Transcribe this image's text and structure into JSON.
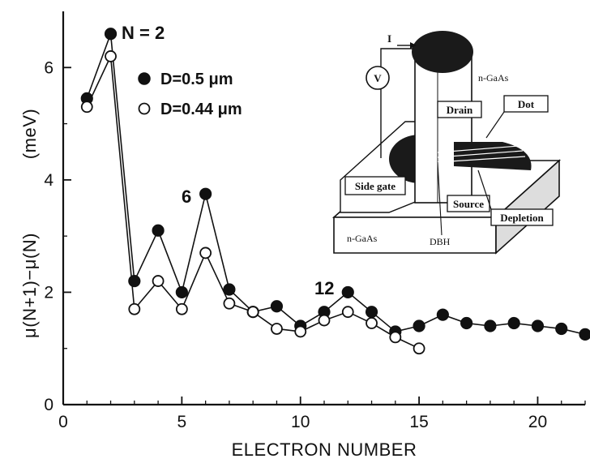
{
  "chart_data": {
    "type": "line",
    "title": "",
    "xlabel": "ELECTRON NUMBER",
    "ylabel_main": "μ(N+1)−μ(N)",
    "ylabel_unit": "(meV)",
    "xlim": [
      0,
      22
    ],
    "ylim": [
      0,
      7
    ],
    "x_ticks": [
      0,
      5,
      10,
      15,
      20
    ],
    "y_ticks": [
      0,
      2,
      4,
      6
    ],
    "grid": false,
    "legend_position": "upper-left",
    "series": [
      {
        "name": "D=0.5 μm",
        "marker": "filled-circle",
        "x": [
          1,
          2,
          3,
          4,
          5,
          6,
          7,
          8,
          9,
          10,
          11,
          12,
          13,
          14,
          15,
          16,
          17,
          18,
          19,
          20,
          21,
          22
        ],
        "values": [
          5.45,
          6.6,
          2.2,
          3.1,
          2.0,
          3.75,
          2.05,
          1.65,
          1.75,
          1.4,
          1.65,
          2.0,
          1.65,
          1.3,
          1.4,
          1.6,
          1.45,
          1.4,
          1.45,
          1.4,
          1.35,
          1.25
        ]
      },
      {
        "name": "D=0.44 μm",
        "marker": "open-circle",
        "x": [
          1,
          2,
          3,
          4,
          5,
          6,
          7,
          8,
          9,
          10,
          11,
          12,
          13,
          14,
          15
        ],
        "values": [
          5.3,
          6.2,
          1.7,
          2.2,
          1.7,
          2.7,
          1.8,
          1.65,
          1.35,
          1.3,
          1.5,
          1.65,
          1.45,
          1.2,
          1.0
        ]
      }
    ],
    "annotations": [
      {
        "text": "N = 2",
        "x": 2,
        "y": 6.6
      },
      {
        "text": "6",
        "x": 6,
        "y": 3.75
      },
      {
        "text": "12",
        "x": 12,
        "y": 2.0
      }
    ],
    "inset": {
      "labels": {
        "current": "I",
        "voltmeter": "V",
        "top_contact": "n-GaAs",
        "drain": "Drain",
        "dot": "Dot",
        "side_gate": "Side gate",
        "source": "Source",
        "depletion": "Depletion",
        "bottom_contact": "n-GaAs",
        "barrier": "DBH"
      }
    }
  }
}
